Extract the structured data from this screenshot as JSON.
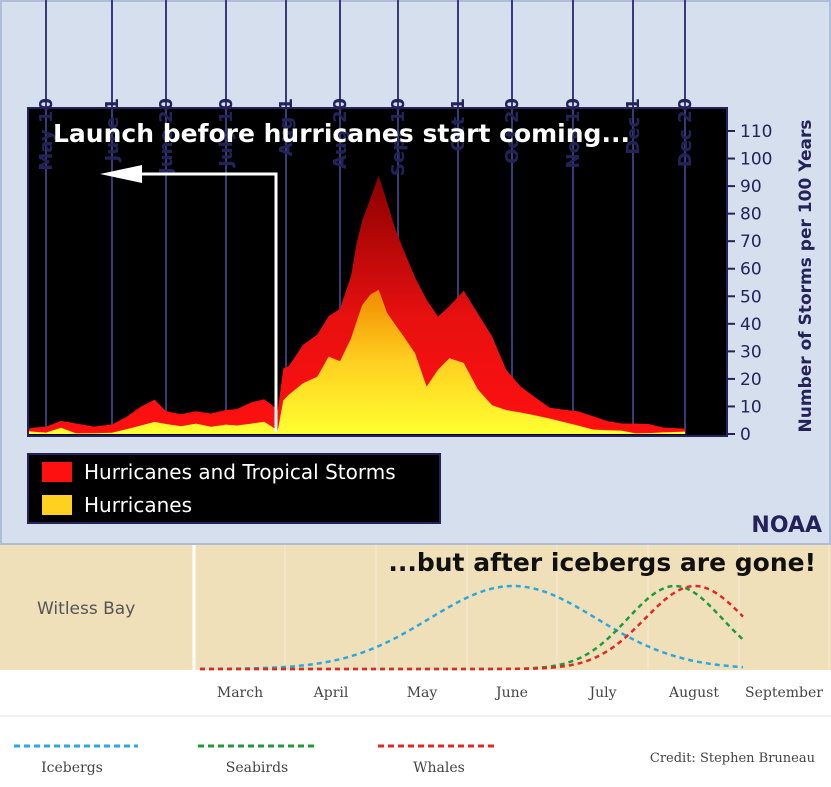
{
  "chart_data": [
    {
      "type": "area",
      "title": "",
      "headline": "Launch before hurricanes start coming...",
      "credit": "NOAA",
      "ylabel": "Number of Storms per 100 Years",
      "ylim": [
        0,
        110
      ],
      "y_ticks": [
        0,
        10,
        20,
        30,
        40,
        50,
        60,
        70,
        80,
        90,
        100,
        110
      ],
      "date_ticks": [
        "May 10",
        "June 1",
        "June 20",
        "July 10",
        "Aug 1",
        "Aug 20",
        "Sept 10",
        "Oct 1",
        "Oct 20",
        "Nov 10",
        "Dec 1",
        "Dec 20"
      ],
      "x_days": [
        -8,
        -4,
        0,
        5,
        10,
        16,
        22,
        27,
        32,
        37,
        41,
        46,
        51,
        56,
        61,
        65,
        70,
        75,
        80,
        82,
        84,
        89,
        94,
        98,
        102,
        106,
        108,
        110,
        113,
        116,
        119,
        122,
        125,
        129,
        133,
        137,
        141,
        146,
        151,
        156,
        161,
        166,
        171,
        176,
        181,
        186,
        191,
        196,
        201,
        206,
        211,
        216,
        224
      ],
      "series": [
        {
          "name": "Hurricanes and Tropical Storms",
          "color": "#ff1010",
          "values": [
            2,
            2,
            2,
            4,
            3,
            2,
            3,
            6,
            10,
            13,
            9,
            8,
            9,
            8,
            9,
            9,
            11,
            12,
            8,
            23,
            24,
            32,
            36,
            43,
            46,
            58,
            70,
            78,
            86,
            94,
            84,
            74,
            66,
            56,
            48,
            42,
            46,
            52,
            44,
            36,
            24,
            18,
            14,
            10,
            9,
            8,
            6,
            4,
            3,
            3,
            3,
            2,
            2
          ]
        },
        {
          "name": "Hurricanes",
          "color": "#ffd020",
          "values": [
            1,
            1,
            1,
            3,
            1,
            1,
            1,
            2,
            3,
            4,
            3,
            2,
            3,
            2,
            3,
            3,
            4,
            5,
            2,
            13,
            15,
            19,
            21,
            28,
            26,
            34,
            40,
            46,
            50,
            52,
            44,
            40,
            36,
            30,
            18,
            24,
            28,
            26,
            16,
            10,
            8,
            7,
            6,
            5,
            4,
            3,
            2,
            2,
            2,
            1,
            1,
            1,
            1
          ]
        }
      ],
      "launch_date": "Aug 1",
      "background": "#000000",
      "frame_color": "#d6dfee"
    },
    {
      "type": "line",
      "headline": "...but after icebergs are gone!",
      "location": "Witless Bay",
      "categories": [
        "March",
        "April",
        "May",
        "June",
        "July",
        "August",
        "September"
      ],
      "x_start": 2.0,
      "series": [
        {
          "name": "Icebergs",
          "color": "#2aa8e0",
          "mean": 5.0,
          "sd": 0.92
        },
        {
          "name": "Seabirds",
          "color": "#1e9a3c",
          "mean": 6.78,
          "sd": 0.52
        },
        {
          "name": "Whales",
          "color": "#e02828",
          "mean": 7.0,
          "sd": 0.55
        }
      ],
      "credit": "Credit: Stephen Bruneau",
      "background": "#efe0ba"
    }
  ]
}
